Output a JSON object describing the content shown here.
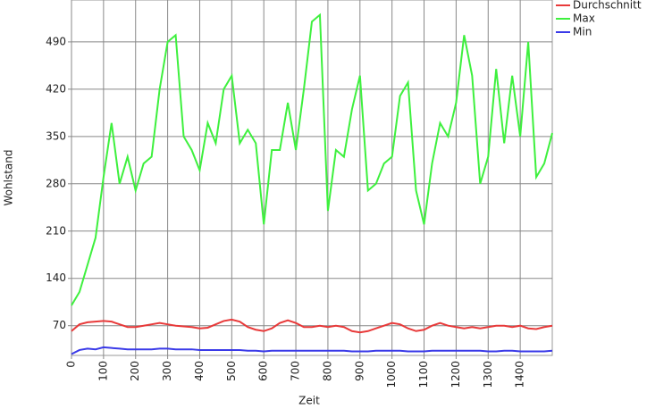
{
  "chart_data": {
    "type": "line",
    "x_label": "Zeit",
    "y_label": "Wohlstand",
    "x": [
      0,
      25,
      50,
      75,
      100,
      125,
      150,
      175,
      200,
      225,
      250,
      275,
      300,
      325,
      350,
      375,
      400,
      425,
      450,
      475,
      500,
      525,
      550,
      575,
      600,
      625,
      650,
      675,
      700,
      725,
      750,
      775,
      800,
      825,
      850,
      875,
      900,
      925,
      950,
      975,
      1000,
      1025,
      1050,
      1075,
      1100,
      1125,
      1150,
      1175,
      1200,
      1225,
      1250,
      1275,
      1300,
      1325,
      1350,
      1375,
      1400,
      1425,
      1450,
      1475,
      1500
    ],
    "series": [
      {
        "name": "Durchschnitt",
        "color": "#e83a3a",
        "values": [
          62,
          72,
          75,
          76,
          77,
          76,
          72,
          68,
          68,
          70,
          72,
          74,
          72,
          70,
          69,
          68,
          66,
          67,
          72,
          77,
          79,
          76,
          68,
          64,
          62,
          66,
          74,
          78,
          74,
          68,
          68,
          70,
          68,
          70,
          68,
          62,
          60,
          62,
          66,
          70,
          74,
          72,
          66,
          62,
          64,
          70,
          74,
          70,
          68,
          66,
          68,
          66,
          68,
          70,
          70,
          68,
          70,
          66,
          65,
          68,
          70
        ]
      },
      {
        "name": "Max",
        "color": "#3ef03e",
        "values": [
          100,
          120,
          160,
          200,
          290,
          370,
          280,
          320,
          270,
          310,
          320,
          420,
          490,
          500,
          350,
          330,
          300,
          370,
          340,
          420,
          440,
          340,
          360,
          340,
          220,
          330,
          330,
          400,
          330,
          420,
          520,
          530,
          240,
          330,
          320,
          390,
          440,
          270,
          280,
          310,
          320,
          410,
          430,
          270,
          220,
          310,
          370,
          350,
          400,
          500,
          440,
          280,
          320,
          450,
          340,
          440,
          350,
          490,
          290,
          310,
          355
        ]
      },
      {
        "name": "Min",
        "color": "#3a3ae8",
        "values": [
          28,
          34,
          36,
          35,
          38,
          37,
          36,
          35,
          35,
          35,
          35,
          36,
          36,
          35,
          35,
          35,
          34,
          34,
          34,
          34,
          34,
          34,
          33,
          33,
          32,
          33,
          33,
          33,
          33,
          33,
          33,
          33,
          33,
          33,
          33,
          32,
          32,
          32,
          33,
          33,
          33,
          33,
          32,
          32,
          32,
          33,
          33,
          33,
          33,
          33,
          33,
          33,
          32,
          32,
          33,
          33,
          32,
          32,
          32,
          32,
          33
        ]
      }
    ],
    "xlim": [
      0,
      1500
    ],
    "ylim": [
      26,
      552
    ],
    "xticks": [
      0,
      100,
      200,
      300,
      400,
      500,
      600,
      700,
      800,
      900,
      1000,
      1100,
      1200,
      1300,
      1400
    ],
    "yticks": [
      70,
      140,
      210,
      280,
      350,
      420,
      490
    ],
    "grid": true,
    "legend": "top-right"
  }
}
